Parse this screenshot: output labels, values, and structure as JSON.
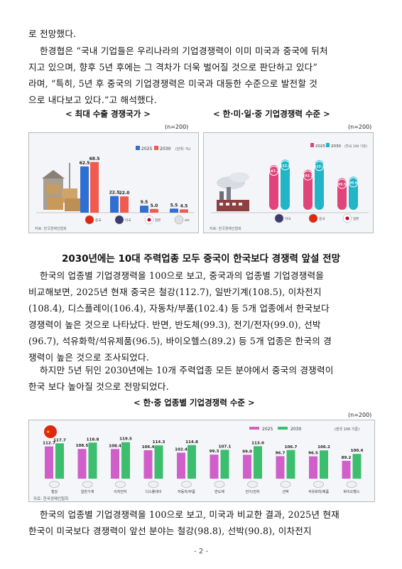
{
  "intro": {
    "line1": "로 전망했다."
  },
  "para1": [
    "한경협은 “국내 기업들은 우리나라의 기업경쟁력이 이미 미국과 중국에 뒤처",
    "지고 있으며, 향후 5년 후에는 그 격차가 더욱 벌어질 것으로 판단하고 있다”",
    "라며, “특히, 5년 후 중국의 기업경쟁력은 미국과 대등한 수준으로 발전할 것",
    "으로 내다보고 있다.”고 해석했다."
  ],
  "figure1": {
    "caption": "< 최대 수출 경쟁국가 >",
    "n_note": "(n=200)",
    "legend": [
      "2025",
      "2030"
    ],
    "unit": "(단위: %)",
    "source": "자료: 한국경제인협회",
    "flag_labels": [
      "중국",
      "미국",
      "일본",
      "etc"
    ],
    "colors": {
      "y2025": "#2f6fd1",
      "y2030": "#f15a4f"
    }
  },
  "figure2": {
    "caption": "< 한·미·일·중 기업경쟁력 수준 >",
    "n_note": "(n=200)",
    "legend": [
      "2025",
      "2030"
    ],
    "unit": "(한국 100 기준)",
    "source": "자료: 한국경제인협회",
    "flag_labels": [
      "미국",
      "중국",
      "일본"
    ],
    "colors": {
      "y2025": "#e0447a",
      "y2030": "#22b5c8"
    }
  },
  "heading": "2030년에는 10대 주력업종 모두 중국이 한국보다 경쟁력 앞설 전망",
  "para2": [
    "한국의 업종별 기업경쟁력을 100으로 보고, 중국과의 업종별 기업경쟁력을",
    "비교해보면, 2025년 현재 중국은 철강(112.7), 일반기계(108.5), 이차전지",
    "(108.4), 디스플레이(106.4), 자동차/부품(102.4) 등 5개 업종에서 한국보다",
    "경쟁력이 높은 것으로 나타났다. 반면, 반도체(99.3), 전기/전자(99.0), 선박",
    "(96.7), 석유화학/석유제품(96.5), 바이오헬스(89.2) 등 5개 업종은 한국의 경",
    "쟁력이 높은 것으로 조사되었다."
  ],
  "para3": [
    "하지만 5년 뒤인 2030년에는 10개 주력업종 모든 분야에서 중국의 경쟁력이",
    "한국 보다 높아질 것으로 전망되었다."
  ],
  "figure3": {
    "caption": "< 한·중 업종별 기업경쟁력 수준 >",
    "n_note": "(n=200)",
    "legend": [
      "2025",
      "2030"
    ],
    "unit": "(한국 100 기준)",
    "source": "자료: 한국경제인협회",
    "colors": {
      "y2025": "#d15fc9",
      "y2030": "#3dbd6e"
    }
  },
  "para4": [
    "한국의 업종별 기업경쟁력을 100으로 보고, 미국과 비교한 결과, 2025년 현재",
    "한국이 미국보다 경쟁력이 앞선 분야는 철강(98.8), 선박(90.8), 이차전지"
  ],
  "page_number": "- 2 -",
  "chart_data": [
    {
      "type": "bar",
      "title": "최대 수출 경쟁국가",
      "categories": [
        "중국",
        "미국",
        "일본",
        "etc"
      ],
      "series": [
        {
          "name": "2025",
          "values": [
            62.5,
            22.5,
            9.5,
            5.5
          ]
        },
        {
          "name": "2030",
          "values": [
            68.5,
            22.0,
            5.0,
            4.5
          ]
        }
      ],
      "ylabel": "(단위: %)",
      "ylim": [
        0,
        75
      ]
    },
    {
      "type": "bar",
      "title": "한·미·일·중 기업경쟁력 수준",
      "categories": [
        "미국",
        "중국",
        "일본"
      ],
      "series": [
        {
          "name": "2025",
          "values": [
            107.2,
            102.2,
            93.5
          ]
        },
        {
          "name": "2030",
          "values": [
            112.9,
            112.3,
            95.0
          ]
        }
      ],
      "ylabel": "(한국 100 기준)",
      "ylim": [
        0,
        120
      ]
    },
    {
      "type": "bar",
      "title": "한·중 업종별 기업경쟁력 수준",
      "categories": [
        "철강",
        "일반기계",
        "이차전지",
        "디스플레이",
        "자동차/부품",
        "반도체",
        "전기/전자",
        "선박",
        "석유화학/제품",
        "바이오헬스"
      ],
      "series": [
        {
          "name": "2025",
          "values": [
            112.7,
            108.5,
            108.4,
            106.4,
            102.4,
            99.3,
            99.0,
            96.7,
            96.5,
            89.2
          ]
        },
        {
          "name": "2030",
          "values": [
            117.7,
            118.8,
            119.5,
            114.3,
            114.8,
            107.1,
            113.0,
            106.7,
            106.2,
            100.4
          ]
        }
      ],
      "ylabel": "(한국 100 기준)",
      "ylim": [
        0,
        125
      ]
    }
  ]
}
